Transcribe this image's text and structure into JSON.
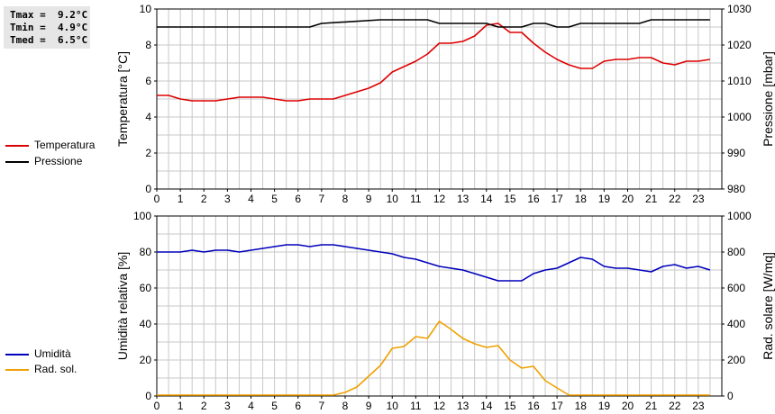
{
  "stats": {
    "tmax": "Tmax =  9.2°C",
    "tmin": "Tmin =  4.9°C",
    "tmed": "Tmed =  6.5°C"
  },
  "colors": {
    "temperatura": "#dd0000",
    "pressione": "#000000",
    "umidita": "#0000bb",
    "radsol": "#f0a000",
    "grid": "#c8c8c8"
  },
  "legend_top": [
    {
      "label": "Temperatura",
      "color": "#dd0000"
    },
    {
      "label": "Pressione",
      "color": "#000000"
    }
  ],
  "legend_bottom": [
    {
      "label": "Umidità",
      "color": "#0000bb"
    },
    {
      "label": "Rad. sol.",
      "color": "#f0a000"
    }
  ],
  "chart_data": [
    {
      "type": "line",
      "ylabel": "Temperatura [°C]",
      "y2label": "Pressione [mbar]",
      "xlim": [
        0,
        24
      ],
      "ylim": [
        0,
        10
      ],
      "y2lim": [
        980,
        1030
      ],
      "x_ticks": [
        "0",
        "1",
        "2",
        "3",
        "4",
        "5",
        "6",
        "7",
        "8",
        "9",
        "10",
        "11",
        "12",
        "13",
        "14",
        "15",
        "16",
        "17",
        "18",
        "19",
        "20",
        "21",
        "22",
        "23"
      ],
      "y_ticks": [
        "0",
        "2",
        "4",
        "6",
        "8",
        "10"
      ],
      "y2_ticks": [
        "980",
        "990",
        "1000",
        "1010",
        "1020",
        "1030"
      ],
      "grid": true,
      "series": [
        {
          "name": "Temperatura",
          "axis": "left",
          "color": "#dd0000",
          "x": [
            0,
            0.5,
            1,
            1.5,
            2,
            2.5,
            3,
            3.5,
            4,
            4.5,
            5,
            5.5,
            6,
            6.5,
            7,
            7.5,
            8,
            8.5,
            9,
            9.5,
            10,
            10.5,
            11,
            11.5,
            12,
            12.5,
            13,
            13.5,
            14,
            14.5,
            15,
            15.5,
            16,
            16.5,
            17,
            17.5,
            18,
            18.5,
            19,
            19.5,
            20,
            20.5,
            21,
            21.5,
            22,
            22.5,
            23,
            23.5
          ],
          "values": [
            5.2,
            5.2,
            5.0,
            4.9,
            4.9,
            4.9,
            5.0,
            5.1,
            5.1,
            5.1,
            5.0,
            4.9,
            4.9,
            5.0,
            5.0,
            5.0,
            5.2,
            5.4,
            5.6,
            5.9,
            6.5,
            6.8,
            7.1,
            7.5,
            8.1,
            8.1,
            8.2,
            8.5,
            9.1,
            9.2,
            8.7,
            8.7,
            8.1,
            7.6,
            7.2,
            6.9,
            6.7,
            6.7,
            7.1,
            7.2,
            7.2,
            7.3,
            7.3,
            7.0,
            6.9,
            7.1,
            7.1,
            7.2
          ]
        },
        {
          "name": "Pressione",
          "axis": "right",
          "color": "#000000",
          "x": [
            0,
            6.5,
            7,
            9.5,
            11.5,
            12,
            14,
            14.5,
            15.5,
            16,
            16.5,
            17,
            17.5,
            18,
            20.5,
            21,
            23.5
          ],
          "values": [
            1025,
            1025,
            1026,
            1027,
            1027,
            1026,
            1026,
            1025,
            1025,
            1026,
            1026,
            1025,
            1025,
            1026,
            1026,
            1027,
            1027
          ]
        }
      ]
    },
    {
      "type": "line",
      "ylabel": "Umidità relativa [%]",
      "y2label": "Rad. solare [W/mq]",
      "xlim": [
        0,
        24
      ],
      "ylim": [
        0,
        100
      ],
      "y2lim": [
        0,
        1000
      ],
      "x_ticks": [
        "0",
        "1",
        "2",
        "3",
        "4",
        "5",
        "6",
        "7",
        "8",
        "9",
        "10",
        "11",
        "12",
        "13",
        "14",
        "15",
        "16",
        "17",
        "18",
        "19",
        "20",
        "21",
        "22",
        "23"
      ],
      "y_ticks": [
        "0",
        "20",
        "40",
        "60",
        "80",
        "100"
      ],
      "y2_ticks": [
        "0",
        "200",
        "400",
        "600",
        "800",
        "1000"
      ],
      "grid": true,
      "series": [
        {
          "name": "Umidità",
          "axis": "left",
          "color": "#0000bb",
          "x": [
            0,
            0.5,
            1,
            1.5,
            2,
            2.5,
            3,
            3.5,
            4,
            4.5,
            5,
            5.5,
            6,
            6.5,
            7,
            7.5,
            8,
            8.5,
            9,
            9.5,
            10,
            10.5,
            11,
            11.5,
            12,
            12.5,
            13,
            13.5,
            14,
            14.5,
            15,
            15.5,
            16,
            16.5,
            17,
            17.5,
            18,
            18.5,
            19,
            19.5,
            20,
            20.5,
            21,
            21.5,
            22,
            22.5,
            23,
            23.5
          ],
          "values": [
            80,
            80,
            80,
            81,
            80,
            81,
            81,
            80,
            81,
            82,
            83,
            84,
            84,
            83,
            84,
            84,
            83,
            82,
            81,
            80,
            79,
            77,
            76,
            74,
            72,
            71,
            70,
            68,
            66,
            64,
            64,
            64,
            68,
            70,
            71,
            74,
            77,
            76,
            72,
            71,
            71,
            70,
            69,
            72,
            73,
            71,
            72,
            70
          ]
        },
        {
          "name": "Rad. sol.",
          "axis": "right",
          "color": "#f0a000",
          "x": [
            0,
            0.5,
            1,
            1.5,
            2,
            2.5,
            3,
            3.5,
            4,
            4.5,
            5,
            5.5,
            6,
            6.5,
            7,
            7.5,
            8,
            8.5,
            9,
            9.5,
            10,
            10.5,
            11,
            11.5,
            12,
            12.5,
            13,
            13.5,
            14,
            14.5,
            15,
            15.5,
            16,
            16.5,
            17,
            17.5,
            18,
            18.5,
            19,
            19.5,
            20,
            20.5,
            21,
            21.5,
            22,
            22.5,
            23,
            23.5
          ],
          "values": [
            5,
            5,
            5,
            5,
            5,
            5,
            5,
            5,
            5,
            5,
            5,
            5,
            5,
            5,
            5,
            5,
            20,
            50,
            110,
            170,
            265,
            275,
            330,
            320,
            415,
            370,
            320,
            290,
            270,
            280,
            200,
            155,
            165,
            85,
            45,
            5,
            5,
            5,
            5,
            5,
            5,
            5,
            5,
            5,
            5,
            5,
            5,
            5
          ]
        }
      ]
    }
  ]
}
